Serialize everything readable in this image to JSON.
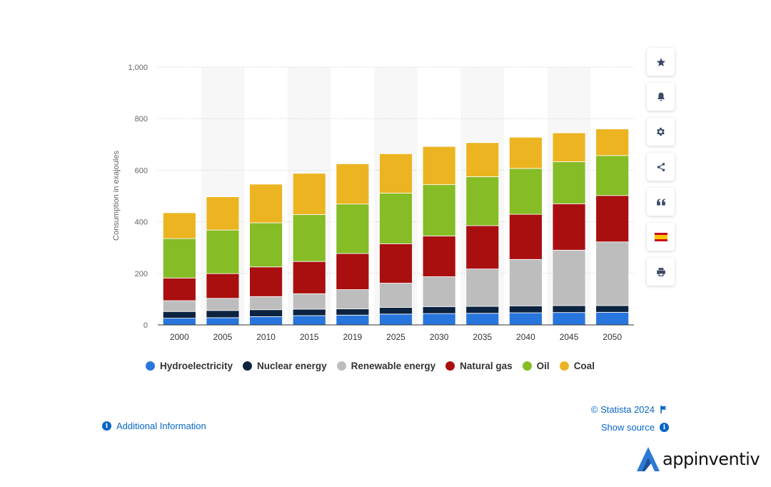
{
  "chart_data": {
    "type": "bar",
    "stacked": true,
    "ylabel": "Consumption in exajoules",
    "xlabel": "",
    "ylim": [
      0,
      1000
    ],
    "yticks": [
      0,
      200,
      400,
      600,
      800,
      1000
    ],
    "ytick_labels": [
      "0",
      "200",
      "400",
      "600",
      "800",
      "1,000"
    ],
    "categories": [
      "2000",
      "2005",
      "2010",
      "2015",
      "2019",
      "2025",
      "2030",
      "2035",
      "2040",
      "2045",
      "2050"
    ],
    "series": [
      {
        "name": "Hydroelectricity",
        "color": "#2876dd",
        "values": [
          26,
          28,
          32,
          36,
          38,
          42,
          44,
          45,
          47,
          48,
          49
        ]
      },
      {
        "name": "Nuclear energy",
        "color": "#0c2340",
        "values": [
          26,
          28,
          27,
          25,
          24,
          26,
          27,
          27,
          27,
          27,
          26
        ]
      },
      {
        "name": "Renewable energy",
        "color": "#bdbdbd",
        "values": [
          42,
          47,
          51,
          60,
          75,
          94,
          116,
          145,
          180,
          215,
          247
        ]
      },
      {
        "name": "Natural gas",
        "color": "#a90f0f",
        "values": [
          88,
          96,
          115,
          125,
          140,
          153,
          158,
          168,
          175,
          180,
          180
        ]
      },
      {
        "name": "Oil",
        "color": "#86bc25",
        "values": [
          153,
          169,
          171,
          182,
          192,
          196,
          199,
          190,
          178,
          163,
          155
        ]
      },
      {
        "name": "Coal",
        "color": "#ecb421",
        "values": [
          100,
          129,
          150,
          160,
          156,
          153,
          148,
          132,
          121,
          112,
          103
        ]
      }
    ],
    "legend_position": "bottom",
    "grid": true
  },
  "sidebar": {
    "buttons": [
      {
        "name": "star-button",
        "icon": "star-icon"
      },
      {
        "name": "notification-button",
        "icon": "bell-icon"
      },
      {
        "name": "settings-button",
        "icon": "gear-icon"
      },
      {
        "name": "share-button",
        "icon": "share-icon"
      },
      {
        "name": "cite-button",
        "icon": "quote-icon"
      },
      {
        "name": "language-button",
        "icon": "spain-flag-icon"
      },
      {
        "name": "print-button",
        "icon": "print-icon"
      }
    ]
  },
  "footer": {
    "credit": "© Statista 2024",
    "show_source": "Show source",
    "additional_info": "Additional Information"
  },
  "brand": {
    "logo_text": "appinventiv"
  },
  "colors": {
    "link": "#0666c6",
    "icon": "#3a4b66"
  }
}
